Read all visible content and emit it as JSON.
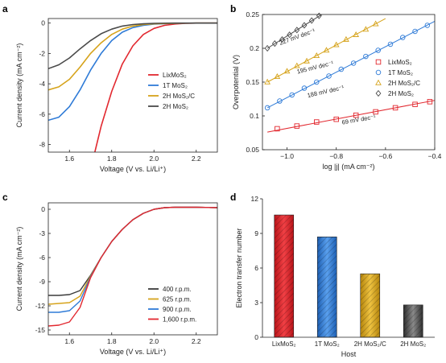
{
  "chart_data": [
    {
      "panel": "a",
      "type": "line",
      "xlabel": "Voltage (V vs. Li/Li⁺)",
      "ylabel": "Current density (mA cm⁻²)",
      "xlim": [
        1.5,
        2.3
      ],
      "ylim": [
        -8.5,
        0.3
      ],
      "xticks": [
        1.6,
        1.8,
        2.0,
        2.2
      ],
      "yticks": [
        0,
        -2,
        -4,
        -6,
        -8
      ],
      "legend": "bottom-right",
      "series": [
        {
          "name": "LixMoS2",
          "label": "LixMoS₂",
          "color": "#e2282f",
          "x": [
            1.72,
            1.75,
            1.8,
            1.85,
            1.9,
            1.95,
            2.0,
            2.05,
            2.1,
            2.15,
            2.2,
            2.3
          ],
          "y": [
            -8.5,
            -6.8,
            -4.5,
            -2.7,
            -1.5,
            -0.75,
            -0.35,
            -0.15,
            -0.06,
            -0.02,
            0.0,
            0.0
          ]
        },
        {
          "name": "1T MoS2",
          "label": "1T MoS₂",
          "color": "#2f7bd7",
          "x": [
            1.5,
            1.55,
            1.6,
            1.65,
            1.7,
            1.75,
            1.8,
            1.85,
            1.9,
            1.95,
            2.0,
            2.1,
            2.2,
            2.3
          ],
          "y": [
            -6.4,
            -6.2,
            -5.5,
            -4.4,
            -3.1,
            -2.0,
            -1.15,
            -0.6,
            -0.3,
            -0.15,
            -0.07,
            -0.02,
            0.0,
            0.0
          ]
        },
        {
          "name": "2H MoS2/C",
          "label": "2H MoS₂/C",
          "color": "#d6a31b",
          "x": [
            1.5,
            1.55,
            1.6,
            1.65,
            1.7,
            1.75,
            1.8,
            1.85,
            1.9,
            1.95,
            2.0,
            2.1,
            2.2,
            2.3
          ],
          "y": [
            -4.4,
            -4.2,
            -3.7,
            -2.9,
            -2.0,
            -1.3,
            -0.75,
            -0.4,
            -0.2,
            -0.1,
            -0.05,
            -0.02,
            0.0,
            0.0
          ]
        },
        {
          "name": "2H MoS2",
          "label": "2H MoS₂",
          "color": "#4a4a4a",
          "x": [
            1.5,
            1.55,
            1.6,
            1.65,
            1.7,
            1.75,
            1.8,
            1.85,
            1.9,
            1.95,
            2.0,
            2.1,
            2.2,
            2.3
          ],
          "y": [
            -3.0,
            -2.75,
            -2.3,
            -1.7,
            -1.15,
            -0.7,
            -0.4,
            -0.2,
            -0.1,
            -0.05,
            -0.02,
            0.0,
            0.0,
            0.0
          ]
        }
      ]
    },
    {
      "panel": "b",
      "type": "scatter",
      "xlabel": "log |j| (mA cm⁻²)",
      "ylabel": "Overpotential (V)",
      "xlim": [
        -1.1,
        -0.4
      ],
      "ylim": [
        0.05,
        0.25
      ],
      "xticks": [
        -1.0,
        -0.8,
        -0.6,
        -0.4
      ],
      "xtick_labels": [
        "−1.0",
        "−0.8",
        "−0.6",
        "−0.4"
      ],
      "yticks": [
        0.05,
        0.1,
        0.15,
        0.2,
        0.25
      ],
      "legend": "center-right",
      "series": [
        {
          "name": "LixMoS2",
          "label": "LixMoS₂",
          "color": "#e2282f",
          "marker": "square",
          "slope_label": "69 mV dec⁻¹",
          "x": [
            -1.04,
            -0.96,
            -0.88,
            -0.8,
            -0.72,
            -0.64,
            -0.56,
            -0.48,
            -0.42
          ],
          "y": [
            0.081,
            0.085,
            0.091,
            0.095,
            0.101,
            0.106,
            0.112,
            0.117,
            0.121
          ],
          "fit": {
            "x": [
              -1.08,
              -0.4
            ],
            "y": [
              0.076,
              0.123
            ]
          }
        },
        {
          "name": "1T MoS2",
          "label": "1T MoS₂",
          "color": "#2f7bd7",
          "marker": "circle",
          "slope_label": "188 mV dec⁻¹",
          "x": [
            -1.08,
            -1.03,
            -0.98,
            -0.93,
            -0.88,
            -0.83,
            -0.78,
            -0.73,
            -0.68,
            -0.63,
            -0.58,
            -0.53,
            -0.48,
            -0.43
          ],
          "y": [
            0.112,
            0.122,
            0.131,
            0.141,
            0.15,
            0.159,
            0.169,
            0.178,
            0.188,
            0.197,
            0.206,
            0.216,
            0.225,
            0.234
          ],
          "fit": {
            "x": [
              -1.08,
              -0.4
            ],
            "y": [
              0.112,
              0.24
            ]
          }
        },
        {
          "name": "2H MoS2/C",
          "label": "2H MoS₂/C",
          "color": "#d6a31b",
          "marker": "triangle",
          "slope_label": "195 mV dec⁻¹",
          "x": [
            -1.08,
            -1.04,
            -1.0,
            -0.96,
            -0.92,
            -0.88,
            -0.84,
            -0.8,
            -0.76,
            -0.72,
            -0.68,
            -0.64
          ],
          "y": [
            0.15,
            0.158,
            0.166,
            0.174,
            0.181,
            0.189,
            0.197,
            0.205,
            0.213,
            0.22,
            0.228,
            0.236
          ],
          "fit": {
            "x": [
              -1.08,
              -0.6
            ],
            "y": [
              0.15,
              0.244
            ]
          }
        },
        {
          "name": "2H MoS2",
          "label": "2H MoS₂",
          "color": "#4a4a4a",
          "marker": "diamond",
          "slope_label": "227 mV dec⁻¹",
          "x": [
            -1.08,
            -1.05,
            -1.02,
            -0.99,
            -0.96,
            -0.93,
            -0.9,
            -0.87
          ],
          "y": [
            0.2,
            0.207,
            0.213,
            0.22,
            0.227,
            0.234,
            0.241,
            0.248
          ],
          "fit": {
            "x": [
              -1.08,
              -0.85
            ],
            "y": [
              0.2,
              0.252
            ]
          }
        }
      ]
    },
    {
      "panel": "c",
      "type": "line",
      "xlabel": "Voltage (V vs. Li/Li⁺)",
      "ylabel": "Current density (mA cm⁻²)",
      "xlim": [
        1.5,
        2.3
      ],
      "ylim": [
        -15.6,
        0.8
      ],
      "xticks": [
        1.6,
        1.8,
        2.0,
        2.2
      ],
      "yticks": [
        0,
        -3,
        -6,
        -9,
        -12,
        -15
      ],
      "legend": "bottom-right",
      "series": [
        {
          "name": "400 r.p.m.",
          "color": "#3a3a3a",
          "x": [
            1.5,
            1.55,
            1.6,
            1.65,
            1.7,
            1.75,
            1.8,
            1.85,
            1.9,
            1.95,
            2.0,
            2.05,
            2.1,
            2.2,
            2.3
          ],
          "y": [
            -10.7,
            -10.7,
            -10.6,
            -10.1,
            -8.2,
            -6.0,
            -4.0,
            -2.5,
            -1.3,
            -0.5,
            0.0,
            0.2,
            0.25,
            0.25,
            0.2
          ]
        },
        {
          "name": "625 r.p.m.",
          "color": "#d6a31b",
          "x": [
            1.5,
            1.55,
            1.6,
            1.65,
            1.7,
            1.75,
            1.8,
            1.85,
            1.9,
            1.95,
            2.0,
            2.05,
            2.1,
            2.2,
            2.3
          ],
          "y": [
            -11.8,
            -11.7,
            -11.6,
            -10.8,
            -8.3,
            -6.0,
            -4.0,
            -2.5,
            -1.3,
            -0.5,
            0.0,
            0.2,
            0.25,
            0.25,
            0.2
          ]
        },
        {
          "name": "900 r.p.m.",
          "color": "#2f7bd7",
          "x": [
            1.5,
            1.55,
            1.6,
            1.65,
            1.7,
            1.75,
            1.8,
            1.85,
            1.9,
            1.95,
            2.0,
            2.05,
            2.1,
            2.2,
            2.3
          ],
          "y": [
            -12.8,
            -12.8,
            -12.6,
            -11.4,
            -8.4,
            -6.0,
            -4.0,
            -2.5,
            -1.3,
            -0.5,
            0.0,
            0.2,
            0.25,
            0.25,
            0.2
          ]
        },
        {
          "name": "1,600 r.p.m.",
          "color": "#e2282f",
          "x": [
            1.5,
            1.55,
            1.6,
            1.65,
            1.7,
            1.75,
            1.8,
            1.85,
            1.9,
            1.95,
            2.0,
            2.05,
            2.1,
            2.2,
            2.3
          ],
          "y": [
            -14.5,
            -14.4,
            -14.0,
            -12.2,
            -8.5,
            -6.0,
            -4.0,
            -2.5,
            -1.3,
            -0.5,
            0.0,
            0.2,
            0.25,
            0.25,
            0.2
          ]
        }
      ]
    },
    {
      "panel": "d",
      "type": "bar",
      "xlabel": "Host",
      "ylabel": "Electron transfer number",
      "ylim": [
        0,
        12
      ],
      "yticks": [
        0,
        3,
        6,
        9,
        12
      ],
      "categories": [
        "LixMoS2",
        "1T MoS2",
        "2H MoS2/C",
        "2H MoS2"
      ],
      "category_labels": [
        "LixMoS₂",
        "1T MoS₂",
        "2H MoS₂/C",
        "2H MoS₂"
      ],
      "values": [
        10.6,
        8.7,
        5.5,
        2.8
      ],
      "colors": [
        "#e2282f",
        "#2f7bd7",
        "#d6a31b",
        "#555555"
      ],
      "hatch": "diagonal"
    }
  ],
  "panel_labels": [
    "a",
    "b",
    "c",
    "d"
  ]
}
